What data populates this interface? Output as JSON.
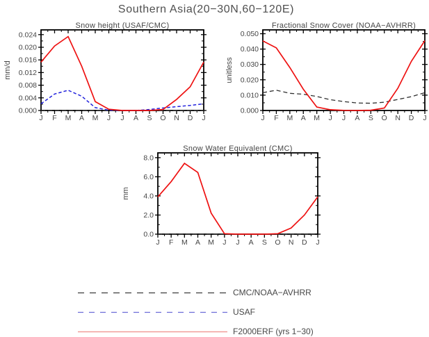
{
  "title": "Southern Asia(20−30N,60−120E)",
  "legend": {
    "items": [
      {
        "id": "cmc-noaa-avhrr",
        "label": "CMC/NOAA−AVHRR",
        "color": "#3c3c3c",
        "dash": "9,8",
        "width": 1.2
      },
      {
        "id": "usaf",
        "label": "USAF",
        "color": "#6b6bd8",
        "dash": "8,8",
        "width": 1.2
      },
      {
        "id": "f2000erf",
        "label": "F2000ERF (yrs 1−30)",
        "color": "#f19c98",
        "dash": null,
        "width": 1.5
      }
    ]
  },
  "chart_data": [
    {
      "type": "line",
      "title": "Snow height (USAF/CMC)",
      "ylabel": "mm/d",
      "categories": [
        "J",
        "F",
        "M",
        "A",
        "M",
        "J",
        "J",
        "A",
        "S",
        "O",
        "N",
        "D",
        "J"
      ],
      "ylim": [
        0,
        0.0255
      ],
      "grid": false,
      "ytick_major": 0.004,
      "ytick_minor": 0.002,
      "yticks": [
        {
          "v": 0.0,
          "label": "0.000"
        },
        {
          "v": 0.004,
          "label": "0.004"
        },
        {
          "v": 0.008,
          "label": "0.008"
        },
        {
          "v": 0.012,
          "label": "0.012"
        },
        {
          "v": 0.016,
          "label": "0.016"
        },
        {
          "v": 0.02,
          "label": "0.020"
        },
        {
          "v": 0.024,
          "label": "0.024"
        }
      ],
      "series": [
        {
          "id": "cmc-noaa-avhrr",
          "name": "CMC/NOAA−AVHRR",
          "color": "#2f2f2f",
          "dash": "6,4",
          "width": 1.3,
          "values": [
            0,
            0,
            0,
            0,
            0,
            0,
            0,
            0,
            0,
            0,
            0,
            0,
            0
          ]
        },
        {
          "id": "usaf",
          "name": "USAF",
          "color": "#2222dd",
          "dash": "4.5,3",
          "width": 1.5,
          "values": [
            0.0021,
            0.0052,
            0.0064,
            0.0045,
            0.0009,
            0.0001,
            0,
            0,
            0.0003,
            0.0008,
            0.0012,
            0.0016,
            0.0021
          ]
        },
        {
          "id": "f2000erf",
          "name": "F2000ERF (yrs 1−30)",
          "color": "#ee1111",
          "dash": null,
          "width": 1.7,
          "values": [
            0.0153,
            0.0204,
            0.0234,
            0.014,
            0.0028,
            0.0004,
            0,
            0,
            0,
            0.0003,
            0.0035,
            0.0075,
            0.0153
          ]
        }
      ]
    },
    {
      "type": "line",
      "title": "Fractional Snow Cover (NOAA−AVHRR)",
      "ylabel": "unitless",
      "categories": [
        "J",
        "F",
        "M",
        "A",
        "M",
        "J",
        "J",
        "A",
        "S",
        "O",
        "N",
        "D",
        "J"
      ],
      "ylim": [
        0,
        0.0525
      ],
      "grid": false,
      "ytick_major": 0.01,
      "ytick_minor": 0.005,
      "yticks": [
        {
          "v": 0.0,
          "label": "0.000"
        },
        {
          "v": 0.01,
          "label": "0.010"
        },
        {
          "v": 0.02,
          "label": "0.020"
        },
        {
          "v": 0.03,
          "label": "0.030"
        },
        {
          "v": 0.04,
          "label": "0.040"
        },
        {
          "v": 0.05,
          "label": "0.050"
        }
      ],
      "series": [
        {
          "id": "cmc-noaa-avhrr",
          "name": "CMC/NOAA−AVHRR",
          "color": "#2f2f2f",
          "dash": "6,4",
          "width": 1.3,
          "values": [
            0.0116,
            0.0132,
            0.0112,
            0.0106,
            0.0091,
            0.007,
            0.0058,
            0.0049,
            0.0047,
            0.0054,
            0.0072,
            0.009,
            0.0116
          ]
        },
        {
          "id": "f2000erf",
          "name": "F2000ERF (yrs 1−30)",
          "color": "#ee1111",
          "dash": null,
          "width": 1.7,
          "values": [
            0.0453,
            0.0408,
            0.028,
            0.0138,
            0.0022,
            0.0005,
            0.0001,
            0,
            0.0002,
            0.0016,
            0.0145,
            0.032,
            0.0455
          ]
        }
      ]
    },
    {
      "type": "line",
      "title": "Snow Water Equivalent (CMC)",
      "ylabel": "mm",
      "categories": [
        "J",
        "F",
        "M",
        "A",
        "M",
        "J",
        "J",
        "A",
        "S",
        "O",
        "N",
        "D",
        "J"
      ],
      "ylim": [
        0,
        8.5
      ],
      "grid": false,
      "ytick_major": 2.0,
      "ytick_minor": 1.0,
      "yticks": [
        {
          "v": 0.0,
          "label": "0.0"
        },
        {
          "v": 2.0,
          "label": "2.0"
        },
        {
          "v": 4.0,
          "label": "4.0"
        },
        {
          "v": 6.0,
          "label": "6.0"
        },
        {
          "v": 8.0,
          "label": "8.0"
        }
      ],
      "series": [
        {
          "id": "cmc-noaa-avhrr",
          "name": "CMC/NOAA−AVHRR",
          "color": "#2f2f2f",
          "dash": "6,4",
          "width": 1.3,
          "values": [
            0,
            0,
            0,
            0,
            0,
            0,
            0,
            0,
            0,
            0,
            0,
            0,
            0
          ]
        },
        {
          "id": "f2000erf",
          "name": "F2000ERF (yrs 1−30)",
          "color": "#ee1111",
          "dash": null,
          "width": 1.7,
          "values": [
            3.9,
            5.5,
            7.4,
            6.45,
            2.2,
            0.05,
            0,
            0,
            0,
            0.05,
            0.65,
            2.0,
            3.9
          ]
        }
      ]
    }
  ]
}
